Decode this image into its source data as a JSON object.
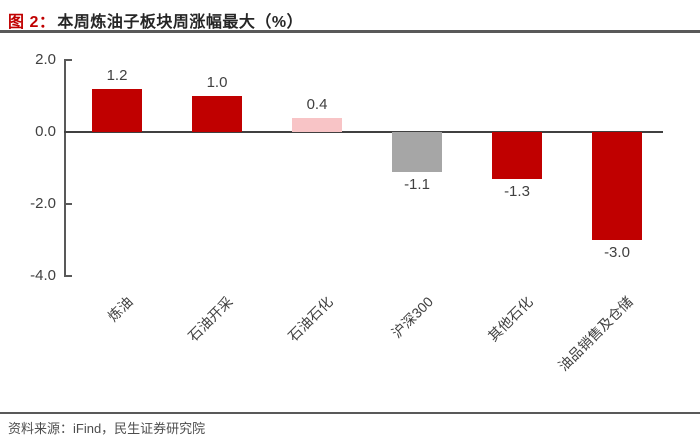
{
  "header": {
    "figure_prefix": "图 2：",
    "title": "本周炼油子板块周涨幅最大（%）"
  },
  "footer": {
    "source": "资料来源：iFind，民生证券研究院"
  },
  "chart_data": {
    "type": "bar",
    "title": "本周炼油子板块周涨幅最大（%）",
    "categories": [
      "炼油",
      "石油开采",
      "石油石化",
      "沪深300",
      "其他石化",
      "油品销售及仓储"
    ],
    "values": [
      1.2,
      1.0,
      0.4,
      -1.1,
      -1.3,
      -3.0
    ],
    "data_labels": [
      "1.2",
      "1.0",
      "0.4",
      "-1.1",
      "-1.3",
      "-3.0"
    ],
    "bar_colors": [
      "#C00000",
      "#C00000",
      "#F8C4C6",
      "#A6A6A6",
      "#C00000",
      "#C00000"
    ],
    "xlabel": "",
    "ylabel": "",
    "ylim": [
      -4.0,
      2.0
    ],
    "yticks": [
      "2.0",
      "0.0",
      "-2.0",
      "-4.0"
    ],
    "ytick_values": [
      2.0,
      0.0,
      -2.0,
      -4.0
    ],
    "grid": false,
    "legend": false,
    "colors": {
      "bar_red": "#C00000",
      "bar_pink": "#F8C4C6",
      "bar_gray": "#A6A6A6",
      "axis": "#595959",
      "label_text": "#404040"
    }
  }
}
